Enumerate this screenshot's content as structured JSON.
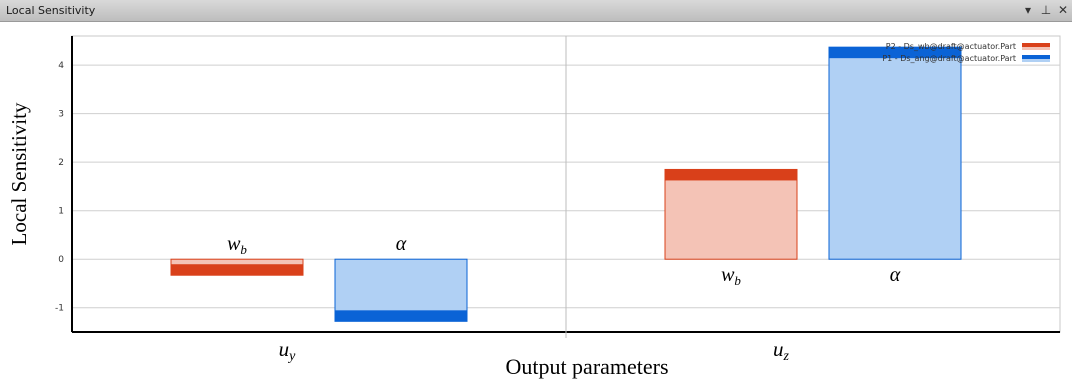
{
  "window": {
    "title": "Local Sensitivity",
    "controls": {
      "menu_icon": "dropdown-arrow-icon",
      "pin_icon": "pin-icon",
      "close_icon": "close-icon"
    }
  },
  "chart_data": {
    "type": "bar",
    "ylabel": "Local Sensitivity",
    "xlabel": "Output parameters",
    "ylim": [
      -1.5,
      4.6
    ],
    "yticks": [
      -1,
      0,
      1,
      2,
      3,
      4
    ],
    "ytick_labels": [
      "-1",
      "0",
      "1",
      "2",
      "3",
      "4"
    ],
    "categories": [
      "u_y",
      "u_z"
    ],
    "category_labels": [
      {
        "base": "u",
        "sub": "y"
      },
      {
        "base": "u",
        "sub": "z"
      }
    ],
    "series": [
      {
        "name": "P2 - Ds_wb@draft@actuator.Part",
        "bar_label": {
          "base": "w",
          "sub": "b"
        },
        "color_fill": "#f4c3b6",
        "color_edge": "#d9401a",
        "values": [
          -0.33,
          1.85
        ]
      },
      {
        "name": "P1 - Ds_ang@draft@actuator.Part",
        "bar_label": {
          "base": "α",
          "sub": ""
        },
        "color_fill": "#b0d0f4",
        "color_edge": "#0a63d6",
        "values": [
          -1.28,
          4.37
        ]
      }
    ],
    "grid": true,
    "legend_position": "top-right"
  }
}
